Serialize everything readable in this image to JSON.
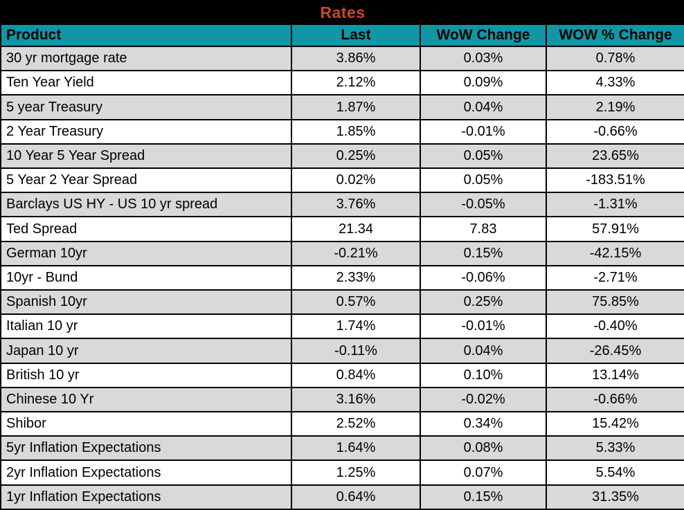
{
  "colors": {
    "title_bg": "#000000",
    "title_text": "#C9472B",
    "header_bg": "#1295A5",
    "header_text": "#000000",
    "row_alt_bg": "#D9D9D9",
    "row_bg": "#FFFFFF",
    "grid_border": "#000000"
  },
  "chart_data": {
    "type": "table",
    "title": "Rates",
    "columns": [
      "Product",
      "Last",
      "WoW Change",
      "WOW % Change"
    ],
    "rows": [
      [
        "30 yr mortgage rate",
        "3.86%",
        "0.03%",
        "0.78%"
      ],
      [
        "Ten Year Yield",
        "2.12%",
        "0.09%",
        "4.33%"
      ],
      [
        "5 year Treasury",
        "1.87%",
        "0.04%",
        "2.19%"
      ],
      [
        "2 Year Treasury",
        "1.85%",
        "-0.01%",
        "-0.66%"
      ],
      [
        "10 Year 5 Year Spread",
        "0.25%",
        "0.05%",
        "23.65%"
      ],
      [
        "5 Year 2 Year Spread",
        "0.02%",
        "0.05%",
        "-183.51%"
      ],
      [
        "Barclays US HY - US 10 yr spread",
        "3.76%",
        "-0.05%",
        "-1.31%"
      ],
      [
        "Ted Spread",
        "21.34",
        "7.83",
        "57.91%"
      ],
      [
        "German 10yr",
        "-0.21%",
        "0.15%",
        "-42.15%"
      ],
      [
        "10yr - Bund",
        "2.33%",
        "-0.06%",
        "-2.71%"
      ],
      [
        "Spanish 10yr",
        "0.57%",
        "0.25%",
        "75.85%"
      ],
      [
        "Italian 10 yr",
        "1.74%",
        "-0.01%",
        "-0.40%"
      ],
      [
        "Japan 10 yr",
        "-0.11%",
        "0.04%",
        "-26.45%"
      ],
      [
        "British 10 yr",
        "0.84%",
        "0.10%",
        "13.14%"
      ],
      [
        "Chinese 10 Yr",
        "3.16%",
        "-0.02%",
        "-0.66%"
      ],
      [
        "Shibor",
        "2.52%",
        "0.34%",
        "15.42%"
      ],
      [
        "5yr Inflation Expectations",
        "1.64%",
        "0.08%",
        "5.33%"
      ],
      [
        "2yr Inflation Expectations",
        "1.25%",
        "0.07%",
        "5.54%"
      ],
      [
        "1yr Inflation Expectations",
        "0.64%",
        "0.15%",
        "31.35%"
      ]
    ]
  }
}
